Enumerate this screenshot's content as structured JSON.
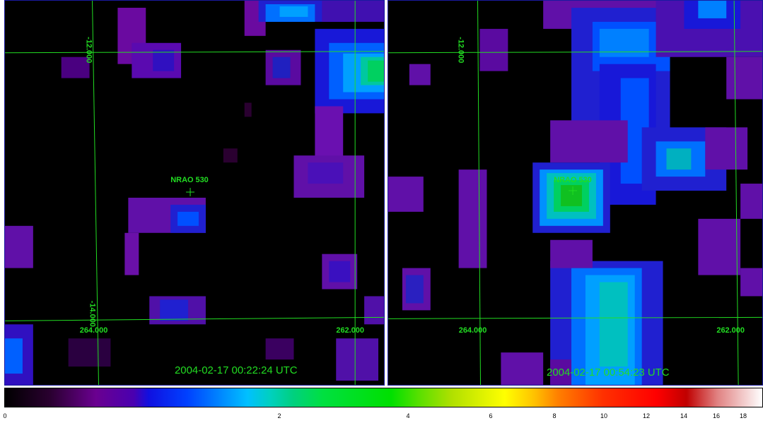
{
  "left_panel": {
    "timestamp": "2004-02-17 00:22:24 UTC",
    "dec_top": "-12.000",
    "dec_bottom": "-14.000",
    "ra_left": "264.000",
    "ra_right": "262.000",
    "source_label": "NRAO 530"
  },
  "right_panel": {
    "timestamp": "2004-02-17 00:54:23 UTC",
    "dec_top": "-12.000",
    "ra_left": "264.000",
    "ra_right": "262.000",
    "source_label": "NRAO 530"
  },
  "colorbar": {
    "ticks": [
      "0",
      "2",
      "4",
      "6",
      "8",
      "10",
      "12",
      "14",
      "16",
      "18"
    ]
  },
  "colors": {
    "grid": "#22dd22",
    "panel_border": "#1a1aa0",
    "background": "#000000"
  },
  "icons": [
    "crosshair-icon"
  ]
}
